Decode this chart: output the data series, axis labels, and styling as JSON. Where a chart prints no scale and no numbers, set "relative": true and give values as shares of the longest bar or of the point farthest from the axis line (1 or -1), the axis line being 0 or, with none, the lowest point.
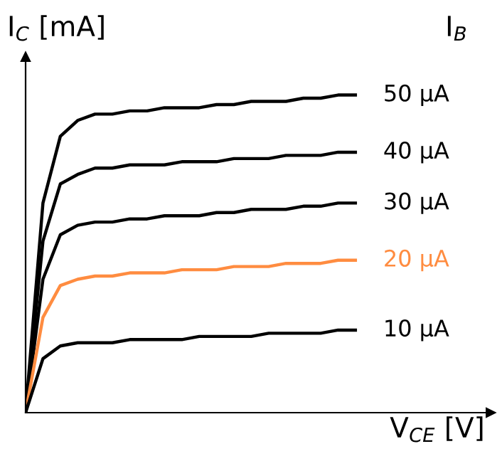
{
  "chart_data": {
    "type": "line",
    "relative": true,
    "ylabel": "I$_{C}$ [mA]",
    "xlabel": "V$_{CE}$ [V]",
    "legend_title": "I$_{B}$",
    "categories": [
      null,
      null,
      null,
      null,
      null,
      null,
      null,
      null,
      null,
      null,
      null,
      null,
      null,
      null,
      null,
      null,
      null,
      null,
      null,
      null
    ],
    "series": [
      {
        "name": "50 μA",
        "color": "#000000",
        "values": [
          0,
          0.66,
          0.87,
          0.92,
          0.94,
          0.94,
          0.95,
          0.95,
          0.96,
          0.96,
          0.96,
          0.97,
          0.97,
          0.98,
          0.98,
          0.98,
          0.99,
          0.99,
          1.0,
          1.0
        ]
      },
      {
        "name": "40 μA",
        "color": "#000000",
        "values": [
          0,
          0.54,
          0.72,
          0.75,
          0.77,
          0.77,
          0.78,
          0.78,
          0.78,
          0.79,
          0.79,
          0.79,
          0.8,
          0.8,
          0.8,
          0.81,
          0.81,
          0.81,
          0.82,
          0.82
        ]
      },
      {
        "name": "30 μA",
        "color": "#000000",
        "values": [
          0,
          0.42,
          0.56,
          0.59,
          0.6,
          0.6,
          0.61,
          0.61,
          0.62,
          0.62,
          0.62,
          0.63,
          0.63,
          0.64,
          0.64,
          0.64,
          0.65,
          0.65,
          0.66,
          0.66
        ]
      },
      {
        "name": "20 μA",
        "color": "#ff8c40",
        "values": [
          0,
          0.3,
          0.4,
          0.42,
          0.43,
          0.43,
          0.44,
          0.44,
          0.44,
          0.45,
          0.45,
          0.45,
          0.46,
          0.46,
          0.46,
          0.47,
          0.47,
          0.47,
          0.48,
          0.48
        ]
      },
      {
        "name": "10 μA",
        "color": "#000000",
        "values": [
          0,
          0.17,
          0.21,
          0.22,
          0.22,
          0.22,
          0.23,
          0.23,
          0.23,
          0.23,
          0.24,
          0.24,
          0.24,
          0.24,
          0.25,
          0.25,
          0.25,
          0.25,
          0.26,
          0.26
        ]
      }
    ]
  }
}
